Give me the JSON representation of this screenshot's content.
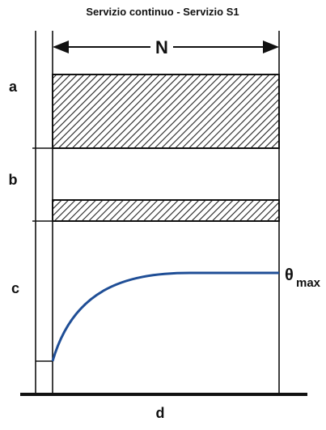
{
  "title": "Servizio continuo - Servizio S1",
  "labels": {
    "duration": "N",
    "a": "a",
    "b": "b",
    "c": "c",
    "d": "d",
    "theta": "θ",
    "theta_sub": "max"
  }
}
